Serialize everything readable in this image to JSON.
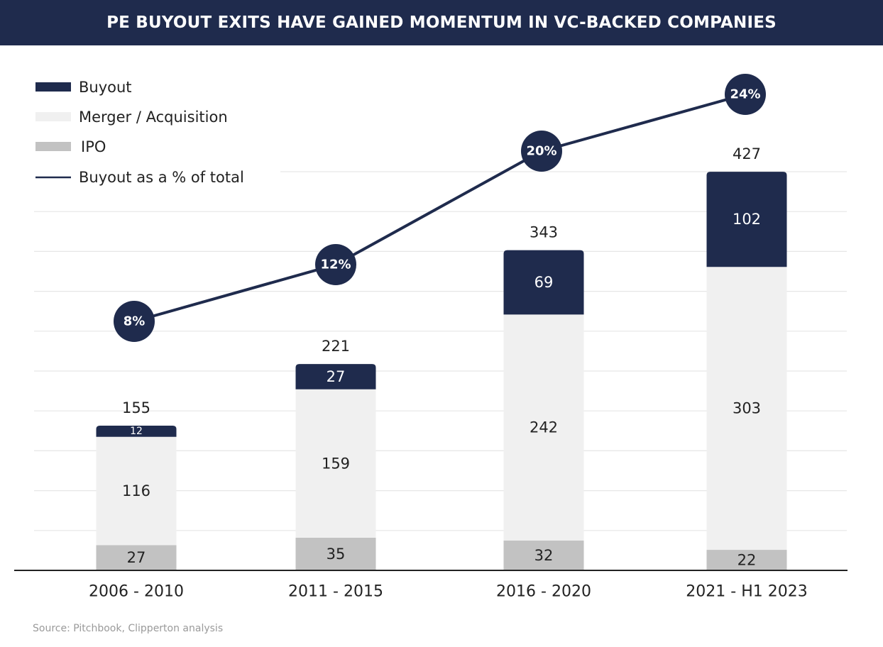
{
  "header": {
    "title": "PE BUYOUT EXITS HAVE GAINED MOMENTUM IN VC-BACKED COMPANIES"
  },
  "footer": {
    "source": "Source: Pitchbook, Clipperton analysis"
  },
  "colors": {
    "buyout": "#1f2b4d",
    "merger": "#f0f0f0",
    "ipo": "#c2c2c2",
    "line": "#1f2b4d",
    "grid": "#e6e6e6",
    "axis": "#222222"
  },
  "chart_data": {
    "type": "bar",
    "stacked": true,
    "categories": [
      "2006 - 2010",
      "2011 - 2015",
      "2016 - 2020",
      "2021 - H1 2023"
    ],
    "series": [
      {
        "name": "IPO",
        "color": "#c2c2c2",
        "values": [
          27,
          35,
          32,
          22
        ]
      },
      {
        "name": "Merger / Acquisition",
        "color": "#f0f0f0",
        "values": [
          116,
          159,
          242,
          303
        ]
      },
      {
        "name": "Buyout",
        "color": "#1f2b4d",
        "values": [
          12,
          27,
          69,
          102
        ]
      }
    ],
    "totals": [
      155,
      221,
      343,
      427
    ],
    "line_series": {
      "name": "Buyout as a % of total",
      "values": [
        8,
        12,
        20,
        24
      ],
      "labels": [
        "8%",
        "12%",
        "20%",
        "24%"
      ]
    },
    "legend_position": "top-left",
    "grid": true
  }
}
